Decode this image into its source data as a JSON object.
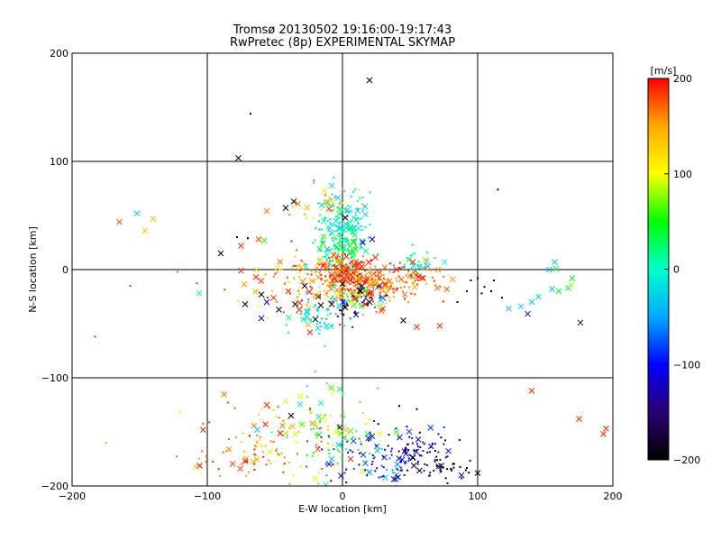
{
  "chart_data": {
    "type": "scatter",
    "title": "Tromsø 20130502 19:16:00-19:17:43",
    "subtitle": "RwPretec (8p) EXPERIMENTAL SKYMAP",
    "xlabel": "E-W location [km]",
    "ylabel": "N-S location [km]",
    "xlim": [
      -200,
      200
    ],
    "ylim": [
      -200,
      200
    ],
    "xticks": [
      "−200",
      "−100",
      "0",
      "100",
      "200"
    ],
    "yticks": [
      "200",
      "100",
      "0",
      "−100",
      "−200"
    ],
    "xtick_values": [
      -200,
      -100,
      0,
      100,
      200
    ],
    "ytick_values": [
      200,
      100,
      0,
      -100,
      -200
    ],
    "grid": true,
    "legend": "colorbar-right",
    "colorbar": {
      "label": "[m/s]",
      "range": [
        -200,
        200
      ],
      "ticks": [
        "200",
        "100",
        "0",
        "−100",
        "−200"
      ],
      "tick_values": [
        200,
        100,
        0,
        -100,
        -200
      ],
      "colormap": [
        "#000000",
        "#2a0070",
        "#0000ff",
        "#00aaff",
        "#00ffcc",
        "#00ff00",
        "#ffff00",
        "#ffaa00",
        "#ff0000"
      ]
    },
    "points": [
      {
        "x": 20,
        "y": 175,
        "v": -200,
        "m": "x"
      },
      {
        "x": -77,
        "y": 103,
        "v": -200,
        "m": "x"
      },
      {
        "x": -68,
        "y": 144,
        "v": -200,
        "m": "d"
      },
      {
        "x": 115,
        "y": 74,
        "v": -200,
        "m": "d"
      },
      {
        "x": -36,
        "y": 63,
        "v": -200,
        "m": "x"
      },
      {
        "x": -42,
        "y": 57,
        "v": -200,
        "m": "x"
      },
      {
        "x": -33,
        "y": 61,
        "v": 170,
        "m": "x"
      },
      {
        "x": -56,
        "y": 54,
        "v": 170,
        "m": "x"
      },
      {
        "x": -165,
        "y": 44,
        "v": 180,
        "m": "x"
      },
      {
        "x": -152,
        "y": 52,
        "v": -20,
        "m": "x"
      },
      {
        "x": -146,
        "y": 36,
        "v": 140,
        "m": "x"
      },
      {
        "x": -140,
        "y": 47,
        "v": 140,
        "m": "x"
      },
      {
        "x": -106,
        "y": -22,
        "v": 10,
        "m": "x"
      },
      {
        "x": -122,
        "y": -2,
        "v": -30,
        "m": "d"
      },
      {
        "x": -157,
        "y": -15,
        "v": 190,
        "m": "d"
      },
      {
        "x": -183,
        "y": -62,
        "v": 190,
        "m": "d"
      },
      {
        "x": -90,
        "y": 15,
        "v": -200,
        "m": "x"
      },
      {
        "x": -75,
        "y": 22,
        "v": 190,
        "m": "x"
      },
      {
        "x": -78,
        "y": 30,
        "v": -200,
        "m": "d"
      },
      {
        "x": -70,
        "y": 29,
        "v": -200,
        "m": "d"
      },
      {
        "x": -62,
        "y": 28,
        "v": 180,
        "m": "x"
      },
      {
        "x": -58,
        "y": 27,
        "v": 60,
        "m": "x"
      },
      {
        "x": -75,
        "y": -1,
        "v": 190,
        "m": "x"
      },
      {
        "x": -64,
        "y": -7,
        "v": 190,
        "m": "x"
      },
      {
        "x": -72,
        "y": -32,
        "v": -200,
        "m": "x"
      },
      {
        "x": -60,
        "y": -23,
        "v": -200,
        "m": "x"
      },
      {
        "x": -56,
        "y": -30,
        "v": -120,
        "m": "x"
      },
      {
        "x": -60,
        "y": -45,
        "v": -120,
        "m": "x"
      },
      {
        "x": -51,
        "y": -26,
        "v": 190,
        "m": "x"
      },
      {
        "x": -47,
        "y": -37,
        "v": -200,
        "m": "x"
      },
      {
        "x": -40,
        "y": -20,
        "v": 190,
        "m": "x"
      },
      {
        "x": -35,
        "y": -32,
        "v": -200,
        "m": "x"
      },
      {
        "x": -28,
        "y": -15,
        "v": -200,
        "m": "x"
      },
      {
        "x": -32,
        "y": -37,
        "v": 190,
        "m": "x"
      },
      {
        "x": -20,
        "y": -46,
        "v": -200,
        "m": "x"
      },
      {
        "x": -24,
        "y": -58,
        "v": 190,
        "m": "x"
      },
      {
        "x": -18,
        "y": -54,
        "v": -20,
        "m": "x"
      },
      {
        "x": -12,
        "y": -52,
        "v": -20,
        "m": "x"
      },
      {
        "x": -16,
        "y": -33,
        "v": -200,
        "m": "x"
      },
      {
        "x": -8,
        "y": -32,
        "v": -200,
        "m": "x"
      },
      {
        "x": 2,
        "y": -35,
        "v": -200,
        "m": "x"
      },
      {
        "x": 0,
        "y": -13,
        "v": -200,
        "m": "x"
      },
      {
        "x": 6,
        "y": -5,
        "v": 190,
        "m": "x"
      },
      {
        "x": 13,
        "y": -19,
        "v": -200,
        "m": "x"
      },
      {
        "x": 17,
        "y": -32,
        "v": 190,
        "m": "x"
      },
      {
        "x": 20,
        "y": -30,
        "v": -200,
        "m": "x"
      },
      {
        "x": 20,
        "y": -22,
        "v": 190,
        "m": "x"
      },
      {
        "x": -8,
        "y": -5,
        "v": 190,
        "m": "x"
      },
      {
        "x": -5,
        "y": 2,
        "v": 190,
        "m": "x"
      },
      {
        "x": 1,
        "y": 3,
        "v": 190,
        "m": "x"
      },
      {
        "x": 3,
        "y": 12,
        "v": 190,
        "m": "x"
      },
      {
        "x": 9,
        "y": 4,
        "v": 190,
        "m": "x"
      },
      {
        "x": 15,
        "y": 25,
        "v": -120,
        "m": "x"
      },
      {
        "x": 22,
        "y": 28,
        "v": -120,
        "m": "x"
      },
      {
        "x": 10,
        "y": 46,
        "v": -20,
        "m": "x"
      },
      {
        "x": -3,
        "y": 38,
        "v": -20,
        "m": "x"
      },
      {
        "x": -5,
        "y": 45,
        "v": 10,
        "m": "x"
      },
      {
        "x": 2,
        "y": 48,
        "v": -200,
        "m": "x"
      },
      {
        "x": 17,
        "y": 51,
        "v": -20,
        "m": "x"
      },
      {
        "x": 40,
        "y": 0,
        "v": 190,
        "m": "x"
      },
      {
        "x": 52,
        "y": 7,
        "v": 190,
        "m": "x"
      },
      {
        "x": 61,
        "y": 9,
        "v": 140,
        "m": "x"
      },
      {
        "x": 57,
        "y": 2,
        "v": -20,
        "m": "x"
      },
      {
        "x": 63,
        "y": 3,
        "v": -40,
        "m": "x"
      },
      {
        "x": 45,
        "y": -47,
        "v": -200,
        "m": "x"
      },
      {
        "x": 55,
        "y": -53,
        "v": 190,
        "m": "x"
      },
      {
        "x": 72,
        "y": -52,
        "v": 190,
        "m": "x"
      },
      {
        "x": 85,
        "y": -30,
        "v": -200,
        "m": "d"
      },
      {
        "x": 95,
        "y": -10,
        "v": -200,
        "m": "d"
      },
      {
        "x": 100,
        "y": -8,
        "v": -200,
        "m": "d"
      },
      {
        "x": 105,
        "y": -16,
        "v": -200,
        "m": "d"
      },
      {
        "x": 110,
        "y": -20,
        "v": -200,
        "m": "d"
      },
      {
        "x": 112,
        "y": -10,
        "v": -200,
        "m": "d"
      },
      {
        "x": 118,
        "y": -26,
        "v": -200,
        "m": "d"
      },
      {
        "x": 103,
        "y": -22,
        "v": -200,
        "m": "d"
      },
      {
        "x": 92,
        "y": -20,
        "v": -200,
        "m": "d"
      },
      {
        "x": 123,
        "y": -36,
        "v": -30,
        "m": "x"
      },
      {
        "x": 132,
        "y": -34,
        "v": -30,
        "m": "x"
      },
      {
        "x": 140,
        "y": -30,
        "v": -30,
        "m": "x"
      },
      {
        "x": 137,
        "y": -41,
        "v": -120,
        "m": "x"
      },
      {
        "x": 145,
        "y": -25,
        "v": -30,
        "m": "x"
      },
      {
        "x": 155,
        "y": -18,
        "v": -30,
        "m": "x"
      },
      {
        "x": 160,
        "y": -20,
        "v": 40,
        "m": "x"
      },
      {
        "x": 167,
        "y": -17,
        "v": 40,
        "m": "x"
      },
      {
        "x": 170,
        "y": -8,
        "v": 40,
        "m": "x"
      },
      {
        "x": 169,
        "y": -14,
        "v": 80,
        "m": "x"
      },
      {
        "x": 157,
        "y": 7,
        "v": -30,
        "m": "x"
      },
      {
        "x": 153,
        "y": 0,
        "v": -30,
        "m": "x"
      },
      {
        "x": 158,
        "y": 1,
        "v": 40,
        "m": "x"
      },
      {
        "x": 176,
        "y": -49,
        "v": -170,
        "m": "x"
      },
      {
        "x": 140,
        "y": -112,
        "v": 190,
        "m": "x"
      },
      {
        "x": 175,
        "y": -138,
        "v": 190,
        "m": "x"
      },
      {
        "x": 195,
        "y": -147,
        "v": 190,
        "m": "x"
      },
      {
        "x": 193,
        "y": -152,
        "v": 190,
        "m": "x"
      },
      {
        "x": 100,
        "y": -188,
        "v": -200,
        "m": "x"
      },
      {
        "x": 88,
        "y": -190,
        "v": -120,
        "m": "x"
      },
      {
        "x": 42,
        "y": -126,
        "v": -200,
        "m": "d"
      },
      {
        "x": 55,
        "y": -129,
        "v": -200,
        "m": "d"
      },
      {
        "x": -56,
        "y": -125,
        "v": 190,
        "m": "x"
      },
      {
        "x": -38,
        "y": -135,
        "v": -200,
        "m": "x"
      },
      {
        "x": -30,
        "y": -143,
        "v": 60,
        "m": "x"
      },
      {
        "x": -37,
        "y": -145,
        "v": 150,
        "m": "x"
      },
      {
        "x": -63,
        "y": -148,
        "v": -30,
        "m": "x"
      },
      {
        "x": -57,
        "y": -143,
        "v": 190,
        "m": "x"
      },
      {
        "x": -2,
        "y": -146,
        "v": -200,
        "m": "x"
      },
      {
        "x": -5,
        "y": -150,
        "v": 100,
        "m": "x"
      },
      {
        "x": -3,
        "y": -162,
        "v": -30,
        "m": "x"
      },
      {
        "x": 6,
        "y": -175,
        "v": 190,
        "m": "x"
      },
      {
        "x": -8,
        "y": -175,
        "v": -30,
        "m": "x"
      },
      {
        "x": 22,
        "y": -154,
        "v": -120,
        "m": "x"
      },
      {
        "x": 40,
        "y": -150,
        "v": 60,
        "m": "x"
      },
      {
        "x": 52,
        "y": -174,
        "v": -200,
        "m": "x"
      },
      {
        "x": 70,
        "y": -176,
        "v": -200,
        "m": "d"
      },
      {
        "x": -175,
        "y": -160,
        "v": 150,
        "m": "d"
      },
      {
        "x": -105,
        "y": -188,
        "v": 100,
        "m": "d"
      }
    ],
    "clusters": [
      {
        "cx": 0,
        "cy": 40,
        "sx": 10,
        "sy": 18,
        "n": 160,
        "vmin": -40,
        "vmax": 40,
        "m": "d"
      },
      {
        "cx": 0,
        "cy": 18,
        "sx": 8,
        "sy": 10,
        "n": 90,
        "vmin": -10,
        "vmax": 60,
        "m": "d"
      },
      {
        "cx": 2,
        "cy": -5,
        "sx": 12,
        "sy": 9,
        "n": 180,
        "vmin": 150,
        "vmax": 200,
        "m": "d"
      },
      {
        "cx": 30,
        "cy": -10,
        "sx": 22,
        "sy": 9,
        "n": 170,
        "vmin": 140,
        "vmax": 200,
        "m": "d"
      },
      {
        "cx": 12,
        "cy": -28,
        "sx": 10,
        "sy": 8,
        "n": 100,
        "vmin": -200,
        "vmax": 200,
        "m": "d"
      },
      {
        "cx": -25,
        "cy": -15,
        "sx": 22,
        "sy": 15,
        "n": 120,
        "vmin": 100,
        "vmax": 200,
        "m": "d"
      },
      {
        "cx": -15,
        "cy": -45,
        "sx": 10,
        "sy": 10,
        "n": 45,
        "vmin": -40,
        "vmax": 30,
        "m": "d"
      },
      {
        "cx": 55,
        "cy": 5,
        "sx": 8,
        "sy": 6,
        "n": 25,
        "vmin": -30,
        "vmax": 40,
        "m": "d"
      },
      {
        "cx": -10,
        "cy": 60,
        "sx": 12,
        "sy": 10,
        "n": 25,
        "vmin": 40,
        "vmax": 180,
        "m": "d"
      },
      {
        "cx": -45,
        "cy": -155,
        "sx": 25,
        "sy": 18,
        "n": 80,
        "vmin": 100,
        "vmax": 200,
        "m": "d"
      },
      {
        "cx": -10,
        "cy": -150,
        "sx": 18,
        "sy": 20,
        "n": 90,
        "vmin": 0,
        "vmax": 120,
        "m": "d"
      },
      {
        "cx": 20,
        "cy": -175,
        "sx": 20,
        "sy": 15,
        "n": 60,
        "vmin": -120,
        "vmax": -20,
        "m": "d"
      },
      {
        "cx": 55,
        "cy": -170,
        "sx": 15,
        "sy": 14,
        "n": 90,
        "vmin": -200,
        "vmax": -80,
        "m": "d"
      },
      {
        "cx": 78,
        "cy": -180,
        "sx": 10,
        "sy": 10,
        "n": 25,
        "vmin": -200,
        "vmax": -160,
        "m": "d"
      },
      {
        "cx": -75,
        "cy": -175,
        "sx": 20,
        "sy": 15,
        "n": 40,
        "vmin": 140,
        "vmax": 200,
        "m": "d"
      }
    ]
  }
}
